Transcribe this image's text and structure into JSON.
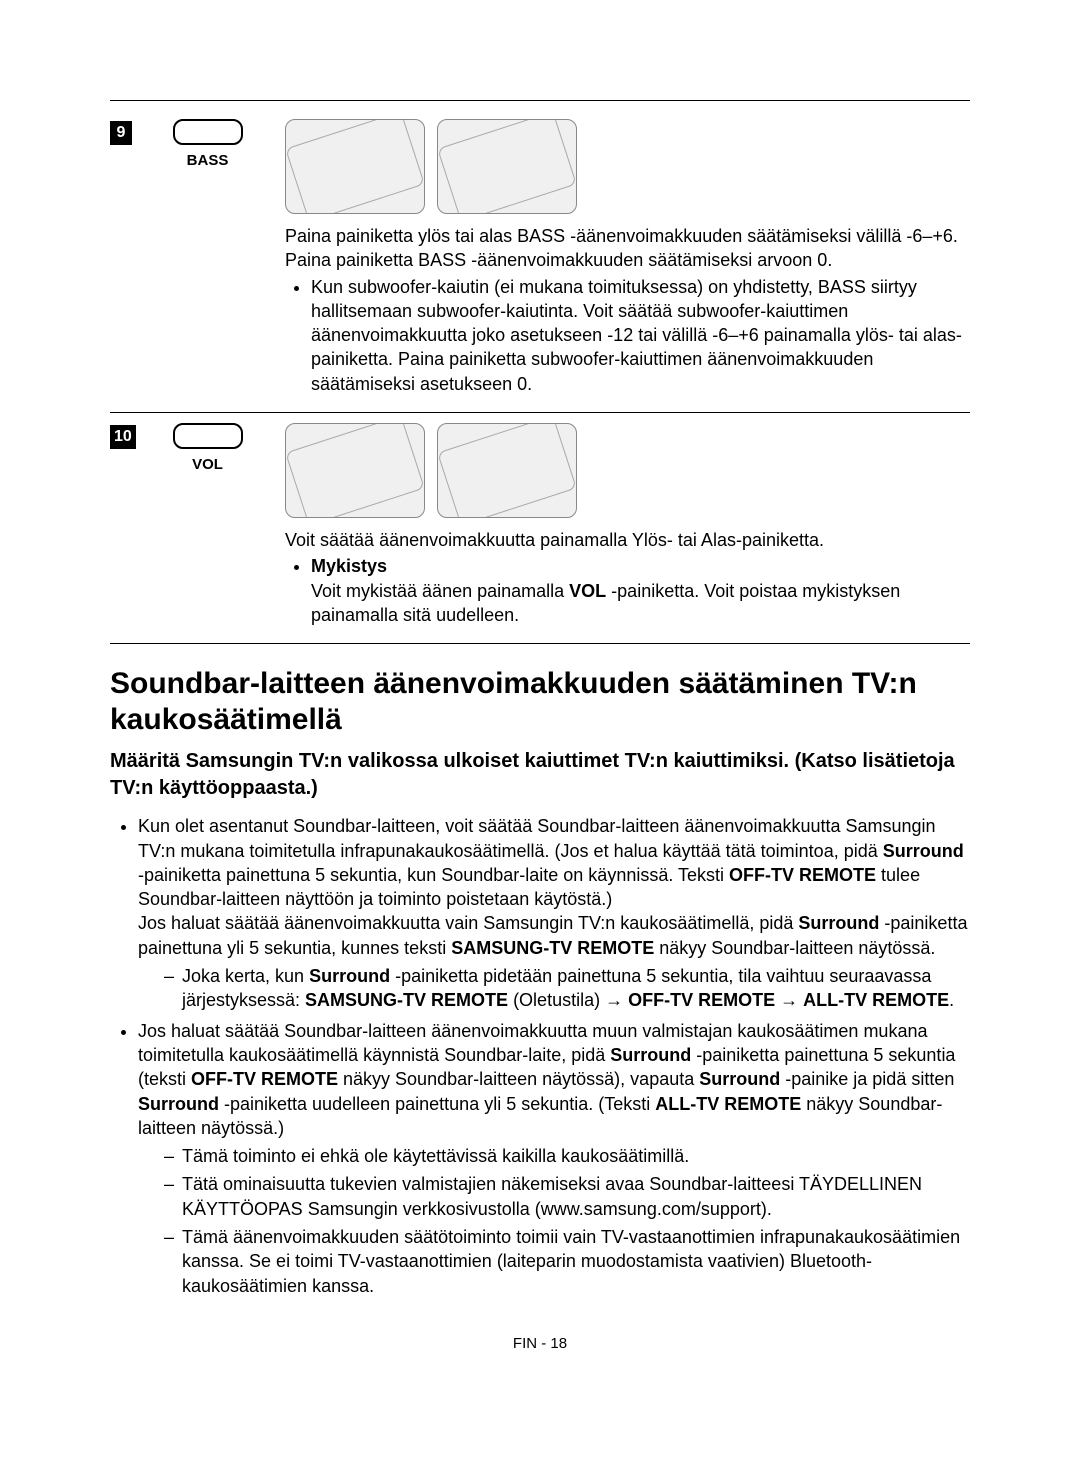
{
  "rows": [
    {
      "num": "9",
      "label": "BASS",
      "p1": "Paina painiketta ylös tai alas BASS -äänenvoimakkuuden säätämiseksi välillä -6–+6.",
      "p2": "Paina painiketta BASS -äänenvoimakkuuden säätämiseksi arvoon 0.",
      "bullet1": "Kun subwoofer-kaiutin (ei mukana toimituksessa) on yhdistetty, BASS siirtyy hallitsemaan subwoofer-kaiutinta. Voit säätää subwoofer-kaiuttimen äänenvoimakkuutta joko asetukseen -12 tai välillä -6–+6 painamalla ylös- tai alas-painiketta. Paina painiketta subwoofer-kaiuttimen äänenvoimakkuuden säätämiseksi asetukseen 0."
    },
    {
      "num": "10",
      "label": "VOL",
      "p1": "Voit säätää äänenvoimakkuutta painamalla Ylös- tai Alas-painiketta.",
      "bullet_title": "Mykistys",
      "bullet_body_a": "Voit mykistää äänen painamalla ",
      "bullet_body_bold": "VOL",
      "bullet_body_b": " -painiketta. Voit poistaa mykistyksen painamalla sitä uudelleen."
    }
  ],
  "section_title": "Soundbar-laitteen äänenvoimakkuuden säätäminen TV:n kaukosäätimellä",
  "subhead": "Määritä Samsungin TV:n valikossa ulkoiset kaiuttimet TV:n kaiuttimiksi. (Katso lisätietoja TV:n käyttöoppaasta.)",
  "m1_a": "Kun olet asentanut Soundbar-laitteen, voit säätää Soundbar-laitteen äänenvoimakkuutta Samsungin TV:n mukana toimitetulla infrapunakaukosäätimellä. (Jos et halua käyttää tätä toimintoa, pidä ",
  "m1_b": "Surround",
  "m1_c": " -painiketta painettuna 5 sekuntia, kun Soundbar-laite on käynnissä. Teksti ",
  "m1_d": "OFF-TV REMOTE",
  "m1_e": " tulee Soundbar-laitteen näyttöön ja toiminto poistetaan käytöstä.)",
  "m1_f": "Jos haluat säätää äänenvoimakkuutta vain Samsungin TV:n kaukosäätimellä, pidä ",
  "m1_g": "Surround",
  "m1_h": " -painiketta painettuna yli 5 sekuntia, kunnes teksti ",
  "m1_i": "SAMSUNG-TV REMOTE",
  "m1_j": " näkyy Soundbar-laitteen näytössä.",
  "m1_dash_a": "Joka kerta, kun ",
  "m1_dash_b": "Surround",
  "m1_dash_c": " -painiketta pidetään painettuna 5 sekuntia, tila vaihtuu seuraavassa järjestyksessä: ",
  "m1_dash_d": "SAMSUNG-TV REMOTE",
  "m1_dash_e": " (Oletustila) → ",
  "m1_dash_f": "OFF-TV REMOTE",
  "m1_dash_g": " → ",
  "m1_dash_h": "ALL-TV REMOTE",
  "m1_dash_i": ".",
  "m2_a": "Jos haluat säätää Soundbar-laitteen äänenvoimakkuutta muun valmistajan kaukosäätimen mukana toimitetulla kaukosäätimellä käynnistä Soundbar-laite, pidä ",
  "m2_b": "Surround",
  "m2_c": " -painiketta painettuna 5 sekuntia (teksti ",
  "m2_d": "OFF-TV REMOTE",
  "m2_e": " näkyy Soundbar-laitteen näytössä), vapauta ",
  "m2_f": "Surround",
  "m2_g": " -painike ja pidä sitten ",
  "m2_h": "Surround",
  "m2_i": " -painiketta uudelleen painettuna yli 5 sekuntia. (Teksti ",
  "m2_j": "ALL-TV REMOTE",
  "m2_k": " näkyy Soundbar-laitteen näytössä.)",
  "m2_dash1": "Tämä toiminto ei ehkä ole käytettävissä kaikilla kaukosäätimillä.",
  "m2_dash2": "Tätä ominaisuutta tukevien valmistajien näkemiseksi avaa Soundbar-laitteesi TÄYDELLINEN KÄYTTÖOPAS Samsungin verkkosivustolla (www.samsung.com/support).",
  "m2_dash3": "Tämä äänenvoimakkuuden säätötoiminto toimii vain TV-vastaanottimien infrapunakaukosäätimien kanssa. Se ei toimi TV-vastaanottimien (laiteparin muodostamista vaativien) Bluetooth-kaukosäätimien kanssa.",
  "footer": "FIN - 18"
}
